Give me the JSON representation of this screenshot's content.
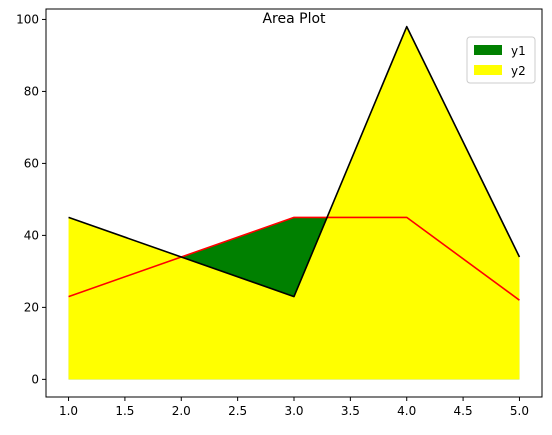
{
  "chart_data": {
    "type": "area",
    "title": "Area Plot",
    "xlabel": "",
    "ylabel": "",
    "x": [
      1,
      2,
      3,
      4,
      5
    ],
    "xlim": [
      0.8,
      5.2
    ],
    "ylim": [
      -4.9,
      102.9
    ],
    "xticks": [
      1.0,
      1.5,
      2.0,
      2.5,
      3.0,
      3.5,
      4.0,
      4.5,
      5.0
    ],
    "xtick_labels": [
      "1.0",
      "1.5",
      "2.0",
      "2.5",
      "3.0",
      "3.5",
      "4.0",
      "4.5",
      "5.0"
    ],
    "yticks": [
      0,
      20,
      40,
      60,
      80,
      100
    ],
    "ytick_labels": [
      "0",
      "20",
      "40",
      "60",
      "80",
      "100"
    ],
    "grid": false,
    "legend_position": "top-right",
    "series": [
      {
        "name": "y1",
        "values": [
          23,
          34,
          45,
          45,
          22
        ],
        "line_color": "#ff0000",
        "fill_color": "#008000"
      },
      {
        "name": "y2",
        "values": [
          45,
          34,
          23,
          98,
          34
        ],
        "line_color": "#000000",
        "fill_color": "#ffff00"
      }
    ]
  }
}
